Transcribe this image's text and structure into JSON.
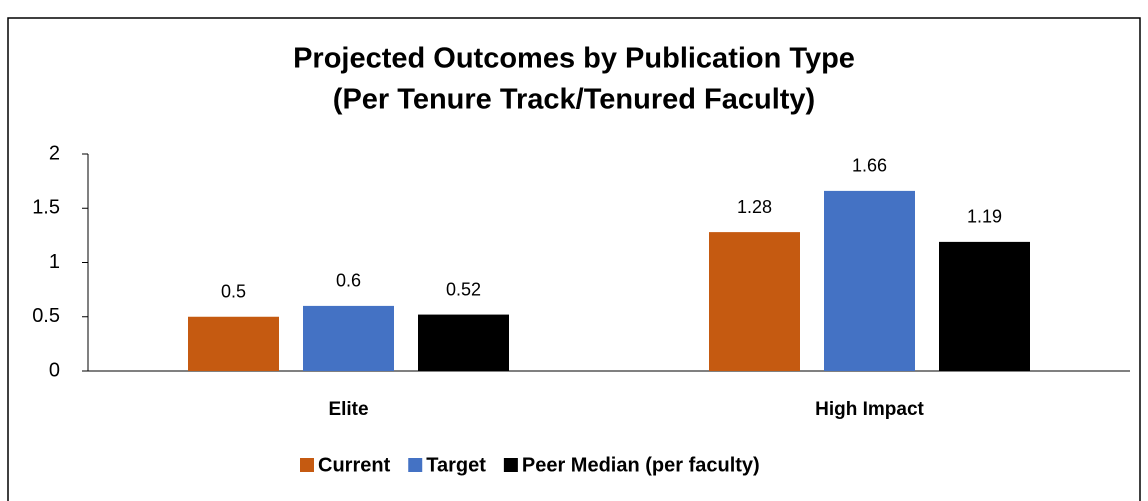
{
  "chart_data": {
    "type": "bar",
    "title": [
      "Projected Outcomes by Publication Type",
      "(Per Tenure Track/Tenured Faculty)"
    ],
    "categories": [
      "Elite",
      "High Impact"
    ],
    "series": [
      {
        "name": "Current",
        "color": "#c55a11",
        "values": [
          0.5,
          1.28
        ]
      },
      {
        "name": "Target",
        "color": "#4472c4",
        "values": [
          0.6,
          1.66
        ]
      },
      {
        "name": "Peer Median (per faculty)",
        "color": "#000000",
        "values": [
          0.52,
          1.19
        ]
      }
    ],
    "ylim": [
      0,
      2
    ],
    "yticks": [
      0,
      0.5,
      1,
      1.5,
      2
    ],
    "grid": false,
    "legend": "bottom"
  }
}
